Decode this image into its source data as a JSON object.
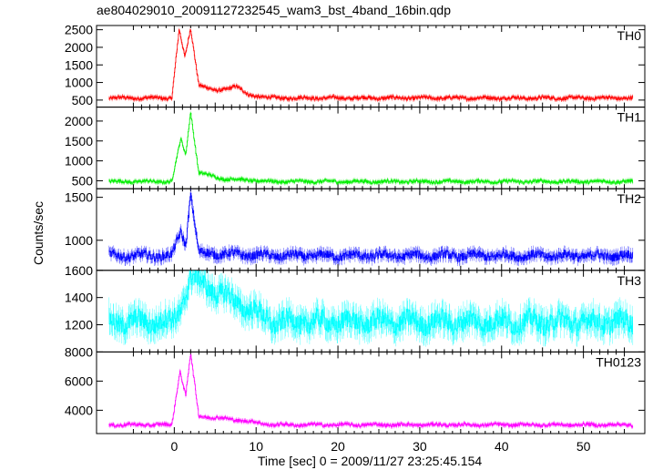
{
  "chart_data": {
    "type": "line",
    "title": "ae804029010_20091127232545_wam3_bst_4band_16bin.qdp",
    "xlabel": "Time [sec] 0 = 2009/11/27 23:25:45.154",
    "ylabel": "Counts/sec",
    "xlim": [
      -9.5,
      57.5
    ],
    "x_ticks": [
      0,
      10,
      20,
      30,
      40,
      50
    ],
    "grid": false,
    "panels": [
      {
        "name": "TH0",
        "color": "#ff0000",
        "ylim": [
          300,
          2620
        ],
        "y_ticks": [
          500,
          1000,
          1500,
          2000,
          2500
        ],
        "baseline": 560,
        "noise": 60,
        "features": [
          {
            "x": 0.6,
            "value": 2500
          },
          {
            "x": 1.3,
            "value": 1700
          },
          {
            "x": 2.0,
            "value": 2550
          },
          {
            "x": 3.0,
            "value": 950
          },
          {
            "x": 5.0,
            "value": 750
          },
          {
            "x": 7.5,
            "value": 900
          },
          {
            "x": 9.0,
            "value": 650
          }
        ]
      },
      {
        "name": "TH1",
        "color": "#00ee00",
        "ylim": [
          300,
          2350
        ],
        "y_ticks": [
          500,
          1000,
          1500,
          2000
        ],
        "baseline": 480,
        "noise": 50,
        "features": [
          {
            "x": 0.8,
            "value": 1550
          },
          {
            "x": 1.4,
            "value": 1150
          },
          {
            "x": 2.0,
            "value": 2250
          },
          {
            "x": 3.0,
            "value": 700
          },
          {
            "x": 6.0,
            "value": 550
          }
        ]
      },
      {
        "name": "TH2",
        "color": "#0000ff",
        "ylim": [
          650,
          1600
        ],
        "y_ticks": [
          1000,
          1500
        ],
        "baseline": 820,
        "noise": 60,
        "features": [
          {
            "x": 0.8,
            "value": 1100
          },
          {
            "x": 1.4,
            "value": 950
          },
          {
            "x": 2.0,
            "value": 1550
          },
          {
            "x": 3.0,
            "value": 850
          }
        ]
      },
      {
        "name": "TH3",
        "color": "#00ffff",
        "ylim": [
          1000,
          1600
        ],
        "y_ticks": [
          1200,
          1400,
          1600
        ],
        "baseline": 1220,
        "noise": 90,
        "features": [
          {
            "x": 0.8,
            "value": 1320
          },
          {
            "x": 2.0,
            "value": 1550
          }
        ]
      },
      {
        "name": "TH0123",
        "color": "#ff00ff",
        "ylim": [
          2400,
          8000
        ],
        "y_ticks": [
          4000,
          6000,
          8000
        ],
        "baseline": 3000,
        "noise": 140,
        "features": [
          {
            "x": 0.7,
            "value": 6700
          },
          {
            "x": 1.4,
            "value": 5000
          },
          {
            "x": 2.0,
            "value": 7900
          },
          {
            "x": 3.0,
            "value": 3600
          },
          {
            "x": 7.5,
            "value": 3350
          }
        ]
      }
    ]
  }
}
